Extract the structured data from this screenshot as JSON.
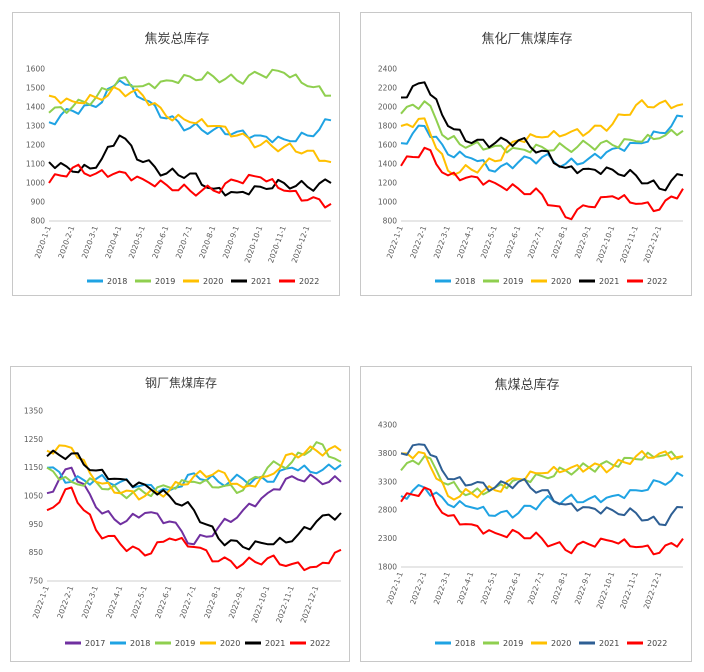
{
  "chart_data": [
    {
      "type": "line",
      "title": "焦炭总库存",
      "ylim": [
        800,
        1600
      ],
      "yticks": [
        "800",
        "900",
        "1000",
        "1100",
        "1200",
        "1300",
        "1400",
        "1500",
        "1600"
      ],
      "x": [
        "2020-1-1",
        "2020-2-1",
        "2020-3-1",
        "2020-4-1",
        "2020-5-1",
        "2020-6-1",
        "2020-7-1",
        "2020-8-1",
        "2020-9-1",
        "2020-10-1",
        "2020-11-1",
        "2020-12-1",
        "2020-12-31"
      ],
      "xlabels": [
        "2020-1-1",
        "2020-2-1",
        "2020-3-1",
        "2020-4-1",
        "2020-5-1",
        "2020-6-1",
        "2020-7-1",
        "2020-8-1",
        "2020-9-1",
        "2020-10-1",
        "2020-11-1",
        "2020-12-1"
      ],
      "series": [
        {
          "name": "2018",
          "color": "#1fa3e3",
          "values": [
            1320,
            1380,
            1400,
            1540,
            1440,
            1340,
            1290,
            1280,
            1270,
            1250,
            1230,
            1250,
            1330
          ]
        },
        {
          "name": "2019",
          "color": "#8fcf4f",
          "values": [
            1370,
            1400,
            1450,
            1550,
            1510,
            1540,
            1560,
            1560,
            1540,
            1570,
            1580,
            1510,
            1460
          ]
        },
        {
          "name": "2020",
          "color": "#ffc000",
          "values": [
            1460,
            1430,
            1450,
            1490,
            1460,
            1350,
            1320,
            1300,
            1250,
            1200,
            1190,
            1170,
            1110
          ]
        },
        {
          "name": "2021",
          "color": "#000000",
          "values": [
            1110,
            1060,
            1080,
            1250,
            1110,
            1050,
            1050,
            970,
            950,
            980,
            1000,
            980,
            1000
          ]
        },
        {
          "name": "2022",
          "color": "#ff0000",
          "values": [
            1000,
            1080,
            1050,
            1060,
            1020,
            990,
            960,
            960,
            1010,
            1030,
            960,
            910,
            890
          ]
        }
      ]
    },
    {
      "type": "line",
      "title": "焦化厂焦煤库存",
      "ylim": [
        800,
        2400
      ],
      "yticks": [
        "800",
        "1000",
        "1200",
        "1400",
        "1600",
        "1800",
        "2000",
        "2200",
        "2400"
      ],
      "x": [
        "2022-1-1",
        "2022-2-1",
        "2022-3-1",
        "2022-4-1",
        "2022-5-1",
        "2022-6-1",
        "2022-7-1",
        "2022-8-1",
        "2022-9-1",
        "2022-10-1",
        "2022-11-1",
        "2022-12-1",
        "2022-12-31"
      ],
      "xlabels": [
        "2022-1-1",
        "2022-2-1",
        "2022-3-1",
        "2022-4-1",
        "2022-5-1",
        "2022-6-1",
        "2022-7-1",
        "2022-8-1",
        "2022-9-1",
        "2022-10-1",
        "2022-11-1",
        "2022-12-1"
      ],
      "series": [
        {
          "name": "2018",
          "color": "#1fa3e3",
          "values": [
            1620,
            1800,
            1500,
            1460,
            1320,
            1420,
            1470,
            1400,
            1460,
            1560,
            1620,
            1730,
            1900
          ]
        },
        {
          "name": "2019",
          "color": "#8fcf4f",
          "values": [
            1930,
            2060,
            1660,
            1600,
            1590,
            1560,
            1580,
            1570,
            1600,
            1600,
            1640,
            1670,
            1750
          ]
        },
        {
          "name": "2020",
          "color": "#ffc000",
          "values": [
            1800,
            1880,
            1330,
            1340,
            1430,
            1650,
            1680,
            1710,
            1740,
            1820,
            2020,
            2040,
            2030
          ]
        },
        {
          "name": "2021",
          "color": "#000000",
          "values": [
            2100,
            2260,
            1800,
            1620,
            1620,
            1650,
            1540,
            1360,
            1350,
            1340,
            1280,
            1140,
            1280
          ]
        },
        {
          "name": "2022",
          "color": "#ff0000",
          "values": [
            1380,
            1570,
            1280,
            1270,
            1200,
            1140,
            1080,
            840,
            950,
            1060,
            980,
            920,
            1140
          ]
        }
      ]
    },
    {
      "type": "line",
      "title": "钢厂焦煤库存",
      "ylim": [
        750,
        1350
      ],
      "yticks": [
        "750",
        "850",
        "950",
        "1050",
        "1150",
        "1250",
        "1350"
      ],
      "x": [
        "2022-1-1",
        "2022-2-1",
        "2022-3-1",
        "2022-4-1",
        "2022-5-1",
        "2022-6-1",
        "2022-7-1",
        "2022-8-1",
        "2022-9-1",
        "2022-10-1",
        "2022-11-1",
        "2022-12-1",
        "2022-12-31"
      ],
      "xlabels": [
        "2022-1-1",
        "2022-2-1",
        "2022-3-1",
        "2022-4-1",
        "2022-5-1",
        "2022-6-1",
        "2022-7-1",
        "2022-8-1",
        "2022-9-1",
        "2022-10-1",
        "2022-11-1",
        "2022-12-1"
      ],
      "series": [
        {
          "name": "2017",
          "color": "#7030a0",
          "values": [
            1060,
            1150,
            1010,
            950,
            990,
            960,
            880,
            940,
            1000,
            1060,
            1120,
            1110,
            1100
          ]
        },
        {
          "name": "2018",
          "color": "#1fa3e3",
          "values": [
            1150,
            1100,
            1110,
            1100,
            1090,
            1070,
            1130,
            1100,
            1110,
            1100,
            1150,
            1130,
            1160
          ]
        },
        {
          "name": "2019",
          "color": "#8fcf4f",
          "values": [
            1150,
            1100,
            1100,
            1060,
            1060,
            1080,
            1100,
            1080,
            1070,
            1150,
            1170,
            1240,
            1170
          ]
        },
        {
          "name": "2020",
          "color": "#ffc000",
          "values": [
            1210,
            1220,
            1100,
            1060,
            1050,
            1070,
            1120,
            1140,
            1080,
            1120,
            1200,
            1210,
            1210
          ]
        },
        {
          "name": "2021",
          "color": "#000000",
          "values": [
            1190,
            1200,
            1140,
            1110,
            1090,
            1050,
            1000,
            900,
            870,
            880,
            890,
            960,
            990
          ]
        },
        {
          "name": "2022",
          "color": "#ff0000",
          "values": [
            1000,
            1080,
            930,
            880,
            840,
            900,
            870,
            820,
            810,
            830,
            810,
            800,
            860
          ]
        }
      ]
    },
    {
      "type": "line",
      "title": "焦煤总库存",
      "ylim": [
        1800,
        4300
      ],
      "yticks": [
        "1800",
        "2300",
        "2800",
        "3300",
        "3800",
        "4300"
      ],
      "x": [
        "2022-1-1",
        "2022-2-1",
        "2022-3-1",
        "2022-4-1",
        "2022-5-1",
        "2022-6-1",
        "2022-7-1",
        "2022-8-1",
        "2022-9-1",
        "2022-10-1",
        "2022-11-1",
        "2022-12-1",
        "2022-12-31"
      ],
      "xlabels": [
        "2022-1-1",
        "2022-2-1",
        "2022-3-1",
        "2022-4-1",
        "2022-5-1",
        "2022-6-1",
        "2022-7-1",
        "2022-8-1",
        "2022-9-1",
        "2022-10-1",
        "2022-11-1",
        "2022-12-1"
      ],
      "series": [
        {
          "name": "2018",
          "color": "#1fa3e3",
          "values": [
            3050,
            3200,
            2900,
            2850,
            2700,
            2750,
            2950,
            3000,
            3000,
            3050,
            3150,
            3300,
            3400
          ]
        },
        {
          "name": "2019",
          "color": "#8fcf4f",
          "values": [
            3500,
            3750,
            3250,
            3100,
            3200,
            3350,
            3400,
            3500,
            3550,
            3600,
            3700,
            3750,
            3750
          ]
        },
        {
          "name": "2020",
          "color": "#ffc000",
          "values": [
            3800,
            3800,
            3050,
            3100,
            3150,
            3350,
            3450,
            3500,
            3550,
            3550,
            3750,
            3800,
            3750
          ]
        },
        {
          "name": "2021",
          "color": "#2e5f94",
          "values": [
            3800,
            3950,
            3350,
            3250,
            3200,
            3300,
            3150,
            2900,
            2850,
            2800,
            2750,
            2550,
            2850
          ]
        },
        {
          "name": "2022",
          "color": "#ff0000",
          "values": [
            2950,
            3200,
            2700,
            2550,
            2400,
            2400,
            2300,
            2100,
            2200,
            2250,
            2150,
            2050,
            2300
          ]
        }
      ]
    }
  ]
}
